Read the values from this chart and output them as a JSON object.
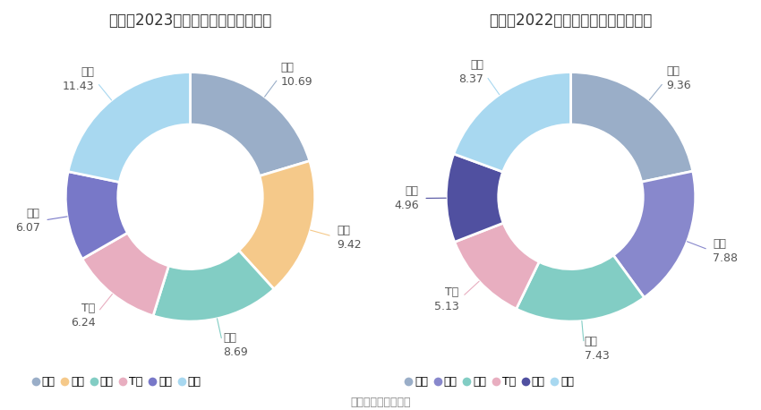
{
  "title_2023": "报喜鸟2023年营业收入构成（亿元）",
  "title_2022": "报喜鸟2022年营业收入构成（亿元）",
  "source": "数据来源：恒生聚源",
  "labels_2023": [
    "上衣",
    "裤子",
    "村衫",
    "T恤",
    "风衣",
    "其他"
  ],
  "values_2023": [
    10.69,
    9.42,
    8.69,
    6.24,
    6.07,
    11.43
  ],
  "colors_2023": [
    "#9aaec8",
    "#f5c98a",
    "#82cdc4",
    "#e8aec0",
    "#7878c8",
    "#a8d8f0"
  ],
  "labels_2022": [
    "上衣",
    "西裤",
    "村衫",
    "T恤",
    "风衣",
    "其他"
  ],
  "values_2022": [
    9.36,
    7.88,
    7.43,
    5.13,
    4.96,
    8.37
  ],
  "colors_2022": [
    "#9aaec8",
    "#8888cc",
    "#82cdc4",
    "#e8aec0",
    "#5050a0",
    "#a8d8f0"
  ],
  "legend_colors_2023": [
    "#9aaec8",
    "#f5c98a",
    "#82cdc4",
    "#e8aec0",
    "#7878c8",
    "#a8d8f0"
  ],
  "legend_labels_2023": [
    "上衣",
    "裤子",
    "村衫",
    "T恤",
    "风衣",
    "其他"
  ],
  "legend_colors_2022": [
    "#9aaec8",
    "#8888cc",
    "#82cdc4",
    "#e8aec0",
    "#5050a0",
    "#a8d8f0"
  ],
  "legend_labels_2022": [
    "上衣",
    "西裤",
    "村衫",
    "T恤",
    "风衣",
    "其他"
  ],
  "bg_color": "#ffffff",
  "title_fontsize": 12,
  "label_fontsize": 9,
  "legend_fontsize": 9,
  "source_fontsize": 9,
  "text_color": "#555555"
}
